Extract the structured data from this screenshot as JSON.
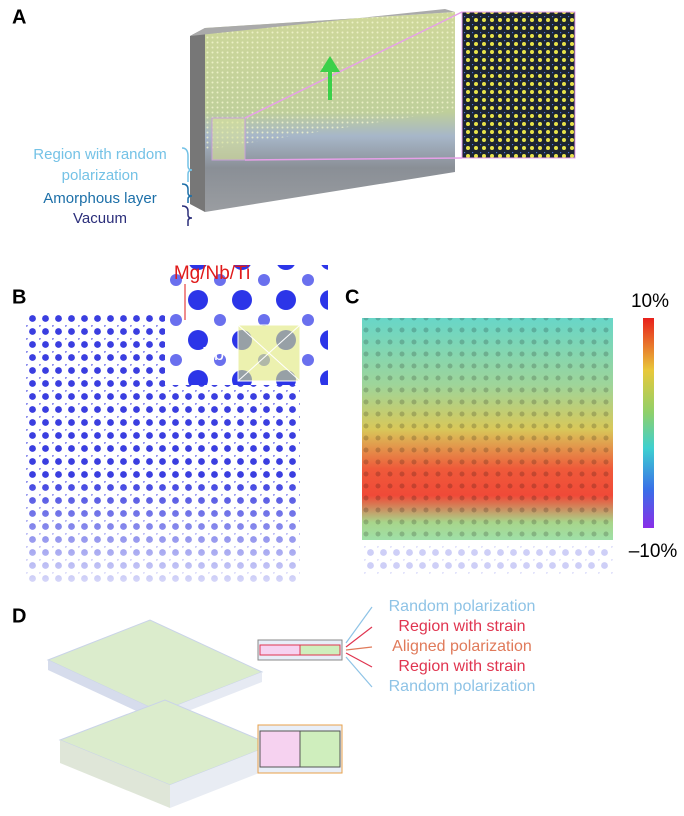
{
  "panel_a": {
    "label": "A",
    "annotations": [
      "Region with random",
      "polarization",
      "Amorphous layer",
      "Vacuum"
    ]
  },
  "panel_b": {
    "label": "B",
    "annotations": [
      "Mg/Nb/Ti",
      "Pb"
    ]
  },
  "panel_c": {
    "label": "C",
    "colorbar": {
      "top_label": "10%",
      "bottom_label": "–10%"
    }
  },
  "panel_d": {
    "label": "D",
    "layers": [
      "Random polarization",
      "Region with strain",
      "Aligned polarization",
      "Region with strain",
      "Random polarization"
    ]
  }
}
